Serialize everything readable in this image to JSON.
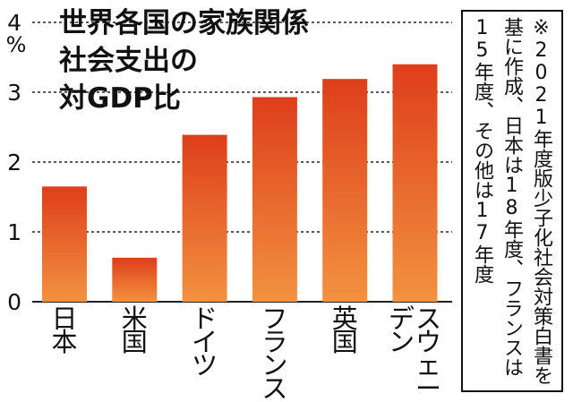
{
  "chart_data": {
    "type": "bar",
    "title_lines": [
      "世界各国の家族関係",
      "社会支出の",
      "対GDP比"
    ],
    "ylabel": "%",
    "ylim": [
      0,
      4
    ],
    "yticks": [
      "0",
      "1",
      "2",
      "3",
      "4"
    ],
    "grid": "dashed horizontal",
    "categories": [
      "日本",
      "米国",
      "ドイツ",
      "フランス",
      "英国",
      "スウェーデン"
    ],
    "values": [
      1.65,
      0.63,
      2.39,
      2.93,
      3.19,
      3.4
    ],
    "bar_color_top": "#de3e1a",
    "bar_color_bottom": "#f29240",
    "note": "※2021年度版少子化社会対策白書を基に作成、日本は18年度、フランスは15年度、その他は17年度"
  }
}
